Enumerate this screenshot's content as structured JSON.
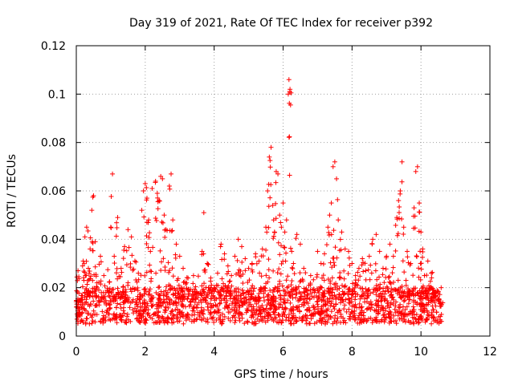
{
  "chart_data": {
    "type": "scatter",
    "title": "Day 319 of 2021, Rate Of TEC Index for receiver p392",
    "xlabel": "GPS time / hours",
    "ylabel": "ROTI / TECUs",
    "xlim": [
      0,
      12
    ],
    "ylim": [
      0,
      0.12
    ],
    "x_ticks": [
      "0",
      "2",
      "4",
      "6",
      "8",
      "10",
      "12"
    ],
    "y_ticks": [
      "0",
      "0.02",
      "0.04",
      "0.06",
      "0.08",
      "0.1",
      "0.12"
    ],
    "grid": true,
    "marker": "+",
    "color": "#ff0000",
    "data_x_range": [
      0,
      10.6
    ],
    "baseline_band": [
      0.005,
      0.02
    ],
    "series": [
      {
        "name": "ROTI",
        "points": [
          [
            0.0,
            0.012
          ],
          [
            0.05,
            0.027
          ],
          [
            0.1,
            0.009
          ],
          [
            0.15,
            0.015
          ],
          [
            0.2,
            0.031
          ],
          [
            0.25,
            0.041
          ],
          [
            0.3,
            0.045
          ],
          [
            0.35,
            0.028
          ],
          [
            0.4,
            0.036
          ],
          [
            0.45,
            0.052
          ],
          [
            0.5,
            0.058
          ],
          [
            0.55,
            0.039
          ],
          [
            0.6,
            0.022
          ],
          [
            0.7,
            0.033
          ],
          [
            0.8,
            0.025
          ],
          [
            0.9,
            0.019
          ],
          [
            1.0,
            0.045
          ],
          [
            1.05,
            0.067
          ],
          [
            1.1,
            0.033
          ],
          [
            1.2,
            0.049
          ],
          [
            1.3,
            0.028
          ],
          [
            1.4,
            0.037
          ],
          [
            1.5,
            0.044
          ],
          [
            1.6,
            0.041
          ],
          [
            1.7,
            0.031
          ],
          [
            1.8,
            0.026
          ],
          [
            1.9,
            0.052
          ],
          [
            1.95,
            0.06
          ],
          [
            2.0,
            0.063
          ],
          [
            2.05,
            0.057
          ],
          [
            2.1,
            0.048
          ],
          [
            2.15,
            0.035
          ],
          [
            2.2,
            0.061
          ],
          [
            2.3,
            0.064
          ],
          [
            2.35,
            0.059
          ],
          [
            2.4,
            0.056
          ],
          [
            2.45,
            0.066
          ],
          [
            2.5,
            0.065
          ],
          [
            2.55,
            0.05
          ],
          [
            2.6,
            0.044
          ],
          [
            2.7,
            0.062
          ],
          [
            2.75,
            0.067
          ],
          [
            2.8,
            0.048
          ],
          [
            2.9,
            0.038
          ],
          [
            3.0,
            0.033
          ],
          [
            3.1,
            0.028
          ],
          [
            3.2,
            0.022
          ],
          [
            3.4,
            0.025
          ],
          [
            3.5,
            0.018
          ],
          [
            3.65,
            0.035
          ],
          [
            3.7,
            0.051
          ],
          [
            3.8,
            0.03
          ],
          [
            3.9,
            0.024
          ],
          [
            4.0,
            0.02
          ],
          [
            4.1,
            0.026
          ],
          [
            4.2,
            0.038
          ],
          [
            4.3,
            0.034
          ],
          [
            4.4,
            0.029
          ],
          [
            4.5,
            0.025
          ],
          [
            4.6,
            0.033
          ],
          [
            4.7,
            0.04
          ],
          [
            4.8,
            0.037
          ],
          [
            4.9,
            0.032
          ],
          [
            5.0,
            0.028
          ],
          [
            5.1,
            0.03
          ],
          [
            5.2,
            0.034
          ],
          [
            5.3,
            0.031
          ],
          [
            5.4,
            0.036
          ],
          [
            5.5,
            0.045
          ],
          [
            5.55,
            0.06
          ],
          [
            5.6,
            0.074
          ],
          [
            5.65,
            0.078
          ],
          [
            5.7,
            0.054
          ],
          [
            5.75,
            0.043
          ],
          [
            5.8,
            0.068
          ],
          [
            5.85,
            0.067
          ],
          [
            5.9,
            0.05
          ],
          [
            5.95,
            0.045
          ],
          [
            6.0,
            0.055
          ],
          [
            6.05,
            0.043
          ],
          [
            6.1,
            0.048
          ],
          [
            6.15,
            0.1
          ],
          [
            6.17,
            0.106
          ],
          [
            6.2,
            0.102
          ],
          [
            6.25,
            0.035
          ],
          [
            6.3,
            0.03
          ],
          [
            6.4,
            0.042
          ],
          [
            6.5,
            0.038
          ],
          [
            6.6,
            0.028
          ],
          [
            6.8,
            0.025
          ],
          [
            7.0,
            0.035
          ],
          [
            7.1,
            0.03
          ],
          [
            7.2,
            0.034
          ],
          [
            7.3,
            0.045
          ],
          [
            7.35,
            0.05
          ],
          [
            7.4,
            0.055
          ],
          [
            7.45,
            0.07
          ],
          [
            7.5,
            0.072
          ],
          [
            7.55,
            0.065
          ],
          [
            7.6,
            0.048
          ],
          [
            7.7,
            0.043
          ],
          [
            7.8,
            0.036
          ],
          [
            7.9,
            0.035
          ],
          [
            8.0,
            0.03
          ],
          [
            8.1,
            0.025
          ],
          [
            8.2,
            0.028
          ],
          [
            8.3,
            0.032
          ],
          [
            8.4,
            0.027
          ],
          [
            8.5,
            0.033
          ],
          [
            8.6,
            0.04
          ],
          [
            8.7,
            0.042
          ],
          [
            8.8,
            0.035
          ],
          [
            8.9,
            0.028
          ],
          [
            9.0,
            0.033
          ],
          [
            9.1,
            0.038
          ],
          [
            9.2,
            0.033
          ],
          [
            9.3,
            0.049
          ],
          [
            9.35,
            0.056
          ],
          [
            9.4,
            0.06
          ],
          [
            9.45,
            0.072
          ],
          [
            9.5,
            0.045
          ],
          [
            9.6,
            0.035
          ],
          [
            9.7,
            0.03
          ],
          [
            9.8,
            0.053
          ],
          [
            9.85,
            0.068
          ],
          [
            9.9,
            0.07
          ],
          [
            9.95,
            0.055
          ],
          [
            10.0,
            0.043
          ],
          [
            10.05,
            0.036
          ],
          [
            10.1,
            0.025
          ],
          [
            10.2,
            0.031
          ],
          [
            10.3,
            0.026
          ],
          [
            10.4,
            0.018
          ],
          [
            10.5,
            0.015
          ],
          [
            10.6,
            0.013
          ]
        ]
      }
    ]
  }
}
